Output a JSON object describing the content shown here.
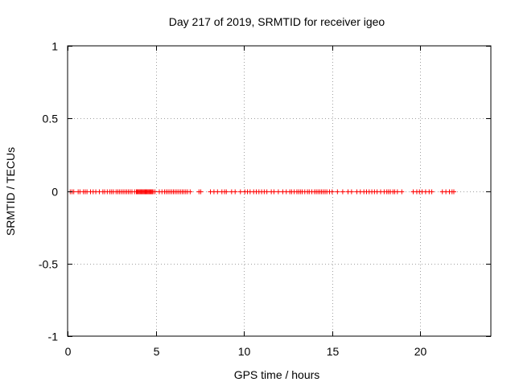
{
  "chart_data": {
    "type": "scatter",
    "title": "Day 217 of 2019, SRMTID for receiver igeo",
    "xlabel": "GPS time / hours",
    "ylabel": "SRMTID / TECUs",
    "xlim": [
      0,
      24
    ],
    "ylim": [
      -1,
      1
    ],
    "xticks": [
      0,
      5,
      10,
      15,
      20
    ],
    "yticks": [
      1,
      0.5,
      0,
      -0.5,
      -1
    ],
    "xtick_labels": [
      "0",
      "5",
      "10",
      "15",
      "20"
    ],
    "ytick_labels": [
      "1",
      "0.5",
      "0",
      "-0.5",
      "-1"
    ],
    "grid": true,
    "legend": "none",
    "marker": "+",
    "series": [
      {
        "name": "SRMTID",
        "color": "#ff0000",
        "x": [
          0.15,
          0.25,
          0.35,
          0.6,
          0.7,
          0.9,
          1.0,
          1.1,
          1.3,
          1.45,
          1.6,
          1.8,
          2.0,
          2.1,
          2.25,
          2.4,
          2.5,
          2.6,
          2.75,
          2.85,
          2.95,
          3.05,
          3.15,
          3.25,
          3.35,
          3.45,
          3.55,
          3.65,
          3.8,
          3.9,
          3.95,
          4.0,
          4.05,
          4.1,
          4.15,
          4.2,
          4.25,
          4.3,
          4.35,
          4.4,
          4.45,
          4.5,
          4.55,
          4.6,
          4.65,
          4.7,
          4.75,
          4.8,
          4.85,
          4.95,
          5.2,
          5.35,
          5.5,
          5.6,
          5.7,
          5.8,
          5.9,
          6.0,
          6.1,
          6.2,
          6.3,
          6.4,
          6.5,
          6.6,
          6.7,
          6.8,
          6.95,
          7.45,
          7.55,
          8.1,
          8.3,
          8.5,
          8.75,
          8.9,
          9.0,
          9.3,
          9.5,
          9.8,
          10.05,
          10.2,
          10.35,
          10.55,
          10.7,
          10.85,
          11.0,
          11.15,
          11.3,
          11.55,
          11.7,
          11.95,
          12.2,
          12.4,
          12.6,
          12.7,
          12.85,
          13.0,
          13.1,
          13.2,
          13.3,
          13.45,
          13.6,
          13.7,
          13.85,
          14.0,
          14.1,
          14.2,
          14.3,
          14.4,
          14.5,
          14.6,
          14.7,
          14.85,
          15.0,
          15.3,
          15.6,
          15.9,
          16.1,
          16.4,
          16.6,
          16.8,
          16.95,
          17.1,
          17.25,
          17.4,
          17.55,
          17.75,
          17.95,
          18.1,
          18.2,
          18.3,
          18.45,
          18.55,
          18.7,
          18.95,
          19.6,
          19.8,
          19.95,
          20.1,
          20.3,
          20.5,
          20.65,
          21.25,
          21.45,
          21.65,
          21.8,
          21.9
        ],
        "y": [
          0,
          0,
          0,
          0,
          0,
          0,
          0,
          0,
          0,
          0,
          0,
          0,
          0,
          0,
          0,
          0,
          0,
          0,
          0,
          0,
          0,
          0,
          0,
          0,
          0,
          0,
          0,
          0,
          0,
          0,
          0,
          0,
          0,
          0,
          0,
          0,
          0,
          0,
          0,
          0,
          0,
          0,
          0,
          0,
          0,
          0,
          0,
          0,
          0,
          0,
          0,
          0,
          0,
          0,
          0,
          0,
          0,
          0,
          0,
          0,
          0,
          0,
          0,
          0,
          0,
          0,
          0,
          0,
          0,
          0,
          0,
          0,
          0,
          0,
          0,
          0,
          0,
          0,
          0,
          0,
          0,
          0,
          0,
          0,
          0,
          0,
          0,
          0,
          0,
          0,
          0,
          0,
          0,
          0,
          0,
          0,
          0,
          0,
          0,
          0,
          0,
          0,
          0,
          0,
          0,
          0,
          0,
          0,
          0,
          0,
          0,
          0,
          0,
          0,
          0,
          0,
          0,
          0,
          0,
          0,
          0,
          0,
          0,
          0,
          0,
          0,
          0,
          0,
          0,
          0,
          0,
          0,
          0,
          0,
          0,
          0,
          0,
          0,
          0,
          0,
          0,
          0,
          0,
          0,
          0,
          0
        ]
      }
    ]
  }
}
